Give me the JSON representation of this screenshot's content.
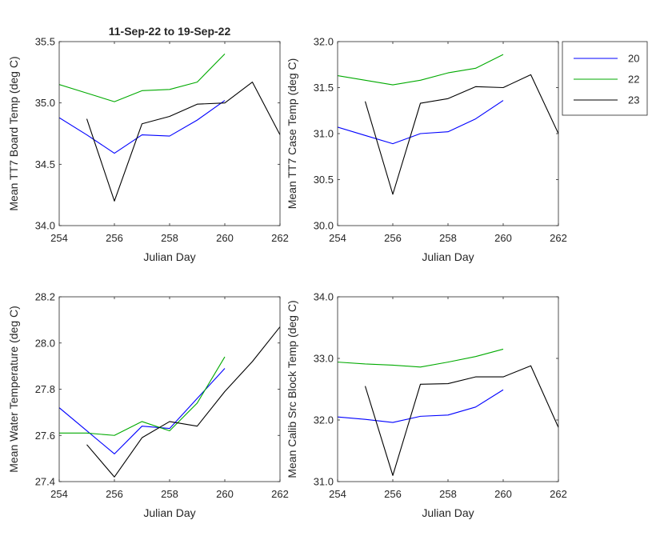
{
  "chart_data": [
    {
      "type": "line",
      "title": "11-Sep-22 to 19-Sep-22",
      "xlabel": "Julian Day",
      "ylabel": "Mean TT7 Board Temp (deg C)",
      "xlim": [
        254,
        262
      ],
      "ylim": [
        34.0,
        35.5
      ],
      "xticks": [
        254,
        256,
        258,
        260,
        262
      ],
      "yticks": [
        34.0,
        34.5,
        35.0,
        35.5
      ],
      "xtick_labels": [
        "254",
        "256",
        "258",
        "260",
        "262"
      ],
      "ytick_labels": [
        "34.0",
        "34.5",
        "35.0",
        "35.5"
      ],
      "grid": false,
      "series": [
        {
          "name": "20",
          "color": "#0000ff",
          "x": [
            254,
            255,
            256,
            257,
            258,
            259,
            260
          ],
          "y": [
            34.88,
            34.74,
            34.59,
            34.74,
            34.73,
            34.86,
            35.02
          ]
        },
        {
          "name": "22",
          "color": "#00aa00",
          "x": [
            254,
            255,
            256,
            257,
            258,
            259,
            260
          ],
          "y": [
            35.15,
            35.08,
            35.01,
            35.1,
            35.11,
            35.17,
            35.4
          ]
        },
        {
          "name": "23",
          "color": "#000000",
          "x": [
            255,
            256,
            257,
            258,
            259,
            260,
            261,
            262
          ],
          "y": [
            34.87,
            34.2,
            34.83,
            34.89,
            34.99,
            35.0,
            35.17,
            34.74
          ]
        }
      ]
    },
    {
      "type": "line",
      "title": "",
      "xlabel": "Julian Day",
      "ylabel": "Mean TT7 Case Temp (deg C)",
      "xlim": [
        254,
        262
      ],
      "ylim": [
        30.0,
        32.0
      ],
      "xticks": [
        254,
        256,
        258,
        260,
        262
      ],
      "yticks": [
        30.0,
        30.5,
        31.0,
        31.5,
        32.0
      ],
      "xtick_labels": [
        "254",
        "256",
        "258",
        "260",
        "262"
      ],
      "ytick_labels": [
        "30.0",
        "30.5",
        "31.0",
        "31.5",
        "32.0"
      ],
      "grid": false,
      "legend": {
        "position": "outside-right-top",
        "entries": [
          {
            "label": "20",
            "color": "#0000ff"
          },
          {
            "label": "22",
            "color": "#00aa00"
          },
          {
            "label": "23",
            "color": "#000000"
          }
        ]
      },
      "series": [
        {
          "name": "20",
          "color": "#0000ff",
          "x": [
            254,
            255,
            256,
            257,
            258,
            259,
            260
          ],
          "y": [
            31.07,
            30.98,
            30.89,
            31.0,
            31.02,
            31.16,
            31.36
          ]
        },
        {
          "name": "22",
          "color": "#00aa00",
          "x": [
            254,
            255,
            256,
            257,
            258,
            259,
            260
          ],
          "y": [
            31.63,
            31.58,
            31.53,
            31.58,
            31.66,
            31.71,
            31.86
          ]
        },
        {
          "name": "23",
          "color": "#000000",
          "x": [
            255,
            256,
            257,
            258,
            259,
            260,
            261,
            262
          ],
          "y": [
            31.35,
            30.34,
            31.33,
            31.38,
            31.51,
            31.5,
            31.64,
            31.0
          ]
        }
      ]
    },
    {
      "type": "line",
      "title": "",
      "xlabel": "Julian Day",
      "ylabel": "Mean Water Temperature (deg C)",
      "xlim": [
        254,
        262
      ],
      "ylim": [
        27.4,
        28.2
      ],
      "xticks": [
        254,
        256,
        258,
        260,
        262
      ],
      "yticks": [
        27.4,
        27.6,
        27.8,
        28.0,
        28.2
      ],
      "xtick_labels": [
        "254",
        "256",
        "258",
        "260",
        "262"
      ],
      "ytick_labels": [
        "27.4",
        "27.6",
        "27.8",
        "28.0",
        "28.2"
      ],
      "grid": false,
      "series": [
        {
          "name": "20",
          "color": "#0000ff",
          "x": [
            254,
            255,
            256,
            257,
            258,
            259,
            260
          ],
          "y": [
            27.72,
            27.62,
            27.52,
            27.64,
            27.63,
            27.76,
            27.89
          ]
        },
        {
          "name": "22",
          "color": "#00aa00",
          "x": [
            254,
            255,
            256,
            257,
            258,
            259,
            260
          ],
          "y": [
            27.61,
            27.61,
            27.6,
            27.66,
            27.62,
            27.74,
            27.94
          ]
        },
        {
          "name": "23",
          "color": "#000000",
          "x": [
            255,
            256,
            257,
            258,
            259,
            260,
            261,
            262
          ],
          "y": [
            27.56,
            27.42,
            27.59,
            27.66,
            27.64,
            27.79,
            27.92,
            28.07
          ]
        }
      ]
    },
    {
      "type": "line",
      "title": "",
      "xlabel": "Julian Day",
      "ylabel": "Mean Calib Src Block Temp (deg C)",
      "xlim": [
        254,
        262
      ],
      "ylim": [
        31.0,
        34.0
      ],
      "xticks": [
        254,
        256,
        258,
        260,
        262
      ],
      "yticks": [
        31.0,
        32.0,
        33.0,
        34.0
      ],
      "xtick_labels": [
        "254",
        "256",
        "258",
        "260",
        "262"
      ],
      "ytick_labels": [
        "31.0",
        "32.0",
        "33.0",
        "34.0"
      ],
      "grid": false,
      "series": [
        {
          "name": "20",
          "color": "#0000ff",
          "x": [
            254,
            255,
            256,
            257,
            258,
            259,
            260
          ],
          "y": [
            32.05,
            32.01,
            31.96,
            32.06,
            32.08,
            32.21,
            32.49
          ]
        },
        {
          "name": "22",
          "color": "#00aa00",
          "x": [
            254,
            255,
            256,
            257,
            258,
            259,
            260
          ],
          "y": [
            32.94,
            32.91,
            32.89,
            32.86,
            32.94,
            33.03,
            33.15
          ]
        },
        {
          "name": "23",
          "color": "#000000",
          "x": [
            255,
            256,
            257,
            258,
            259,
            260,
            261,
            262
          ],
          "y": [
            32.55,
            31.1,
            32.58,
            32.59,
            32.7,
            32.7,
            32.88,
            31.88
          ]
        }
      ]
    }
  ]
}
